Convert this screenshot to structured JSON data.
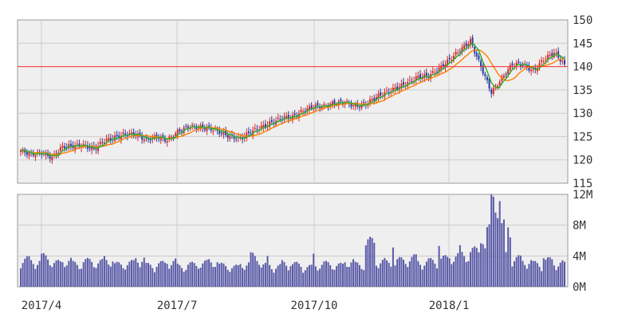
{
  "chart_data": {
    "type": "candlestick",
    "price_panel": {
      "y_ticks": [
        "150",
        "145",
        "140",
        "135",
        "130",
        "125",
        "120",
        "115"
      ],
      "y_tick_values": [
        150,
        145,
        140,
        135,
        130,
        125,
        120,
        115
      ],
      "ylim": [
        115,
        150
      ],
      "reference_line": 140,
      "ma_short_label": "",
      "ma_long_label": "",
      "colors": {
        "up": "#d62a2a",
        "down": "#2a3aa0",
        "ma_short": "#2ab02a",
        "ma_long": "#ff7f00",
        "reference": "#ff3030",
        "background": "#efefef",
        "grid": "#cccccc"
      },
      "weekly_close": [
        122.0,
        121.2,
        121.5,
        120.5,
        122.8,
        123.0,
        123.1,
        122.3,
        124.1,
        124.8,
        125.5,
        125.5,
        124.3,
        125.0,
        124.2,
        126.0,
        127.2,
        127.0,
        126.8,
        126.0,
        125.0,
        124.5,
        126.0,
        127.0,
        128.0,
        129.0,
        129.2,
        130.5,
        131.5,
        131.5,
        132.2,
        132.4,
        131.5,
        132.0,
        133.5,
        134.5,
        135.5,
        136.5,
        137.8,
        138.0,
        139.5,
        141.5,
        143.5,
        145.5,
        140.0,
        134.5,
        137.5,
        140.5,
        140.5,
        139.0,
        141.5,
        143.0,
        140.5
      ]
    },
    "volume_panel": {
      "y_ticks": [
        "12M",
        "8M",
        "4M",
        "0M"
      ],
      "y_tick_values": [
        12,
        8,
        4,
        0
      ],
      "ylim": [
        0,
        12
      ],
      "unit": "M",
      "bar_color": "#5a5aa8",
      "weekly_volume_M": [
        3.2,
        3.0,
        3.5,
        2.8,
        3.1,
        2.7,
        3.0,
        2.9,
        3.2,
        2.6,
        2.8,
        3.3,
        2.5,
        2.7,
        3.0,
        2.4,
        2.6,
        2.8,
        3.0,
        2.5,
        2.3,
        2.7,
        3.6,
        2.5,
        2.4,
        2.8,
        2.6,
        2.3,
        2.6,
        2.7,
        2.5,
        3.0,
        2.6,
        5.2,
        3.0,
        2.8,
        3.1,
        3.4,
        2.9,
        3.0,
        3.3,
        3.6,
        3.8,
        4.2,
        6.5,
        10.8,
        7.0,
        3.3,
        3.0,
        2.7,
        3.1,
        2.8,
        2.6
      ],
      "spikes_M": [
        4.0,
        4.0,
        4.3,
        5.1,
        5.3,
        5.4,
        5.0,
        4.5,
        3.7,
        4.2,
        10.9,
        9.6,
        5.0
      ]
    },
    "x_tick_labels": [
      "2017/4",
      "2017/7",
      "2017/10",
      "2018/1"
    ],
    "grid": true
  }
}
